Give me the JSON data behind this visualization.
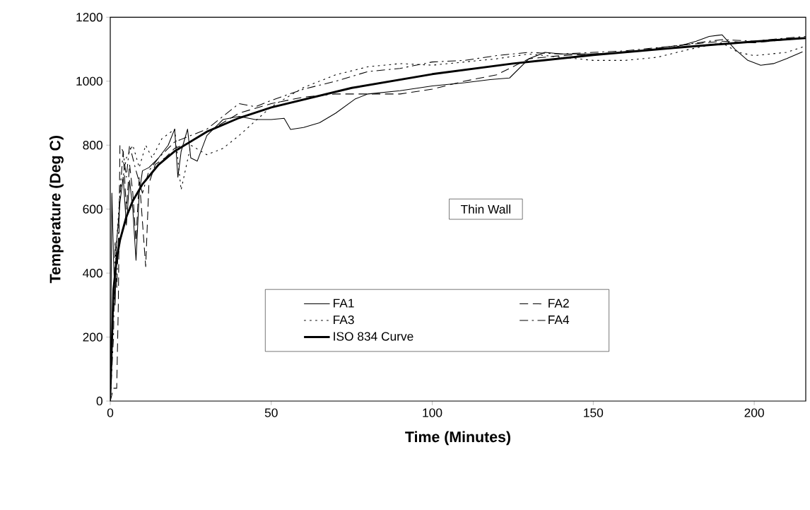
{
  "chart_data": {
    "type": "line",
    "xlabel": "Time (Minutes)",
    "ylabel": "Temperature (Deg C)",
    "xlim": [
      0,
      216
    ],
    "ylim": [
      0,
      1200
    ],
    "xticks": [
      0,
      50,
      100,
      150,
      200
    ],
    "yticks": [
      0,
      200,
      400,
      600,
      800,
      1000,
      1200
    ],
    "grid": false,
    "legend": "bottom",
    "marker": "none",
    "annotations": [
      "Thin Wall"
    ],
    "series": [
      {
        "name": "FA1",
        "color": "#000000",
        "line_style": "solid",
        "x": [
          0,
          0.5,
          1,
          1.5,
          2,
          3,
          4,
          5,
          6,
          7,
          8,
          9,
          10,
          12,
          15,
          18,
          20,
          21,
          22,
          24,
          25,
          27,
          30,
          35,
          40,
          45,
          50,
          54,
          56,
          60,
          65,
          70,
          76,
          80,
          90,
          100,
          110,
          118,
          124,
          130,
          135,
          140,
          150,
          160,
          175,
          182,
          186,
          190,
          194,
          198,
          202,
          206,
          210,
          215
        ],
        "values": [
          0,
          650,
          450,
          300,
          500,
          620,
          700,
          550,
          690,
          600,
          440,
          650,
          720,
          730,
          760,
          800,
          850,
          700,
          780,
          850,
          760,
          750,
          830,
          880,
          890,
          880,
          880,
          884,
          849,
          855,
          870,
          900,
          944,
          960,
          970,
          985,
          995,
          1005,
          1010,
          1070,
          1090,
          1085,
          1085,
          1090,
          1105,
          1125,
          1140,
          1145,
          1100,
          1065,
          1050,
          1055,
          1070,
          1092
        ]
      },
      {
        "name": "FA2",
        "color": "#000000",
        "line_style": "dashed",
        "x": [
          0,
          1,
          2,
          2.5,
          3,
          4,
          5,
          6,
          7,
          8,
          9,
          10,
          11,
          12,
          14,
          17,
          20,
          25,
          30,
          40,
          50,
          60,
          70,
          80,
          90,
          100,
          110,
          120,
          130,
          140,
          150,
          160,
          175,
          190,
          200,
          210,
          216
        ],
        "values": [
          0,
          40,
          40,
          300,
          800,
          780,
          600,
          740,
          650,
          500,
          700,
          560,
          420,
          680,
          740,
          760,
          790,
          810,
          840,
          900,
          930,
          950,
          960,
          960,
          960,
          975,
          1000,
          1020,
          1070,
          1080,
          1085,
          1090,
          1110,
          1125,
          1120,
          1130,
          1135
        ]
      },
      {
        "name": "FA3",
        "color": "#000000",
        "line_style": "dotted",
        "x": [
          0,
          1,
          2,
          3,
          4,
          5,
          7,
          9,
          11,
          13,
          16,
          20,
          22,
          25,
          30,
          35,
          40,
          50,
          60,
          70,
          80,
          90,
          100,
          110,
          120,
          130,
          140,
          150,
          160,
          170,
          180,
          190,
          195,
          200,
          205,
          210,
          216
        ],
        "values": [
          0,
          300,
          500,
          650,
          700,
          760,
          800,
          730,
          800,
          760,
          820,
          850,
          660,
          800,
          770,
          790,
          830,
          920,
          980,
          1020,
          1045,
          1055,
          1050,
          1060,
          1070,
          1085,
          1075,
          1065,
          1065,
          1075,
          1100,
          1120,
          1090,
          1080,
          1085,
          1090,
          1110
        ]
      },
      {
        "name": "FA4",
        "color": "#000000",
        "line_style": "dashdotted",
        "x": [
          0,
          1,
          1.5,
          2,
          3,
          4,
          5,
          6,
          8,
          10,
          12,
          15,
          18,
          20,
          25,
          30,
          35,
          40,
          45,
          50,
          60,
          70,
          80,
          90,
          100,
          110,
          120,
          130,
          140,
          150,
          160,
          175,
          190,
          200,
          210,
          216
        ],
        "values": [
          0,
          200,
          500,
          350,
          650,
          780,
          700,
          800,
          720,
          650,
          720,
          760,
          790,
          810,
          830,
          850,
          890,
          930,
          920,
          940,
          975,
          1000,
          1030,
          1040,
          1060,
          1065,
          1080,
          1090,
          1085,
          1090,
          1095,
          1110,
          1130,
          1125,
          1135,
          1140
        ]
      },
      {
        "name": "ISO 834 Curve",
        "color": "#000000",
        "line_style": "solid",
        "x": [
          0,
          1,
          2,
          3,
          5,
          7,
          10,
          15,
          20,
          30,
          40,
          50,
          75,
          100,
          125,
          150,
          175,
          200,
          216
        ],
        "values": [
          20,
          349,
          445,
          502,
          576,
          626,
          678,
          739,
          781,
          842,
          885,
          918,
          979,
          1022,
          1055,
          1082,
          1104,
          1124,
          1135
        ]
      }
    ]
  }
}
